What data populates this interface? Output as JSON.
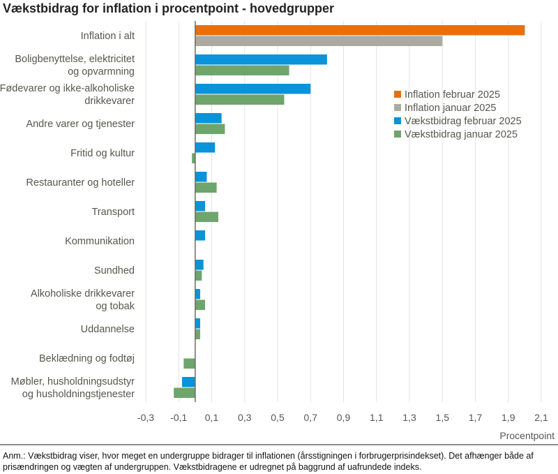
{
  "title": "Vækstbidrag for inflation i procentpoint - hovedgrupper",
  "note": "Anm.: Vækstbidrag viser, hvor meget en undergruppe bidrager til inflationen (årsstigningen i forbrugerprisindekset). Det afhænger både af prisændringen og vægten af undergruppen. Vækstbidragene er udregnet på baggrund af uafrundede indeks.",
  "chart_data": {
    "type": "bar",
    "orientation": "horizontal",
    "title": "Vækstbidrag for inflation i procentpoint - hovedgrupper",
    "xlabel": "Procentpoint",
    "xlim": [
      -0.3,
      2.1
    ],
    "xticks": [
      "-0,3",
      "-0,1",
      "0,1",
      "0,3",
      "0,5",
      "0,7",
      "0,9",
      "1,1",
      "1,3",
      "1,5",
      "1,7",
      "1,9",
      "2,1"
    ],
    "grid": true,
    "legend_position": "right",
    "categories": [
      [
        "Inflation i alt"
      ],
      [
        "Boligbenyttelse, elektricitet",
        "og opvarmning"
      ],
      [
        "Fødevarer og ikke-alkoholiske",
        "drikkevarer"
      ],
      [
        "Andre varer og tjenester"
      ],
      [
        "Fritid og kultur"
      ],
      [
        "Restauranter og hoteller"
      ],
      [
        "Transport"
      ],
      [
        "Kommunikation"
      ],
      [
        "Sundhed"
      ],
      [
        "Alkoholiske drikkevarer",
        "og tobak"
      ],
      [
        "Uddannelse"
      ],
      [
        "Beklædning og fodtøj"
      ],
      [
        "Møbler, husholdningsudstyr",
        "og husholdningstjenester"
      ]
    ],
    "series": [
      {
        "name": "Inflation februar 2025",
        "color": "#ea6f0c",
        "values": [
          2.0,
          null,
          null,
          null,
          null,
          null,
          null,
          null,
          null,
          null,
          null,
          null,
          null
        ]
      },
      {
        "name": "Inflation januar 2025",
        "color": "#acaa9f",
        "values": [
          1.5,
          null,
          null,
          null,
          null,
          null,
          null,
          null,
          null,
          null,
          null,
          null,
          null
        ]
      },
      {
        "name": "Vækstbidrag februar 2025",
        "color": "#0a93d8",
        "values": [
          null,
          0.8,
          0.7,
          0.16,
          0.12,
          0.07,
          0.06,
          0.06,
          0.05,
          0.03,
          0.03,
          0.0,
          -0.08
        ]
      },
      {
        "name": "Vækstbidrag januar 2025",
        "color": "#6ea56c",
        "values": [
          null,
          0.57,
          0.54,
          0.18,
          -0.02,
          0.13,
          0.14,
          0.0,
          0.04,
          0.06,
          0.03,
          -0.07,
          -0.13
        ]
      }
    ]
  }
}
